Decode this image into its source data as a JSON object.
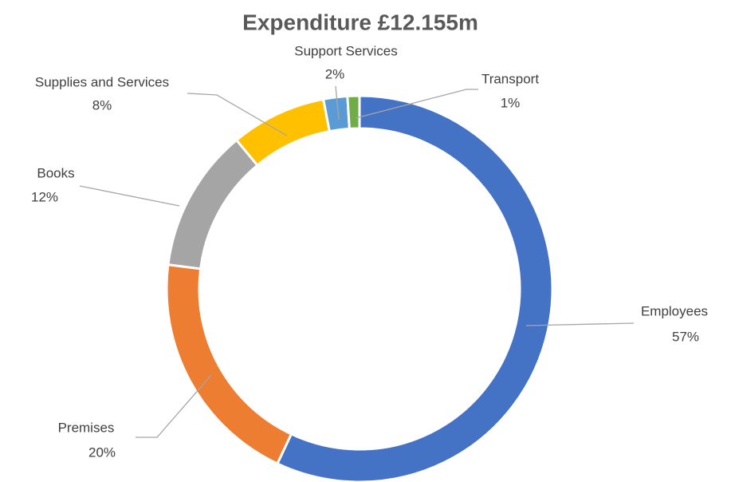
{
  "chart_data": {
    "type": "donut",
    "title": "Expenditure £12.155m",
    "categories": [
      "Employees",
      "Premises",
      "Books",
      "Supplies and Services",
      "Support Services",
      "Transport"
    ],
    "values": [
      57,
      20,
      12,
      8,
      2,
      1
    ],
    "value_labels": [
      "57%",
      "20%",
      "12%",
      "8%",
      "2%",
      "1%"
    ],
    "colors": [
      "#4472c4",
      "#ed7d31",
      "#a5a5a5",
      "#ffc000",
      "#5b9bd5",
      "#70ad47"
    ]
  }
}
